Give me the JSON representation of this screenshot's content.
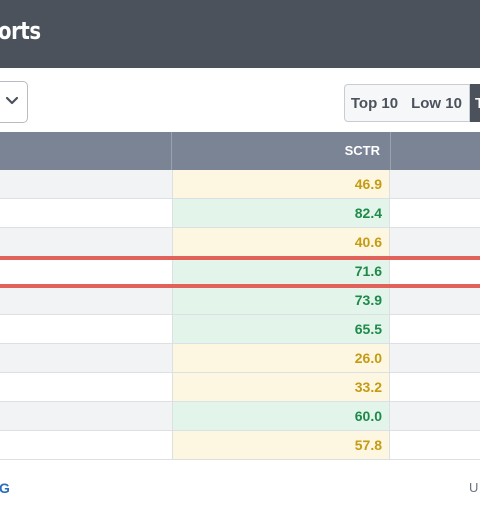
{
  "header": {
    "title": "orts"
  },
  "toolbar": {
    "segments": {
      "top10": "Top 10",
      "low10": "Low 10",
      "third": "T"
    }
  },
  "table": {
    "column_header": "SCTR",
    "rows": [
      {
        "sctr": "46.9",
        "tone": "yellow"
      },
      {
        "sctr": "82.4",
        "tone": "green"
      },
      {
        "sctr": "40.6",
        "tone": "yellow"
      },
      {
        "sctr": "71.6",
        "tone": "green",
        "highlighted": true
      },
      {
        "sctr": "73.9",
        "tone": "green"
      },
      {
        "sctr": "65.5",
        "tone": "green"
      },
      {
        "sctr": "26.0",
        "tone": "yellow"
      },
      {
        "sctr": "33.2",
        "tone": "yellow"
      },
      {
        "sctr": "60.0",
        "tone": "green"
      },
      {
        "sctr": "57.8",
        "tone": "yellow"
      }
    ]
  },
  "footer": {
    "left_text": "G",
    "right_text": "U"
  },
  "colors": {
    "header_bg": "#4b525c",
    "column_header_bg": "#7a8494",
    "yellow_text": "#c49b12",
    "green_text": "#1e8a4a",
    "highlight": "#e0625a"
  }
}
